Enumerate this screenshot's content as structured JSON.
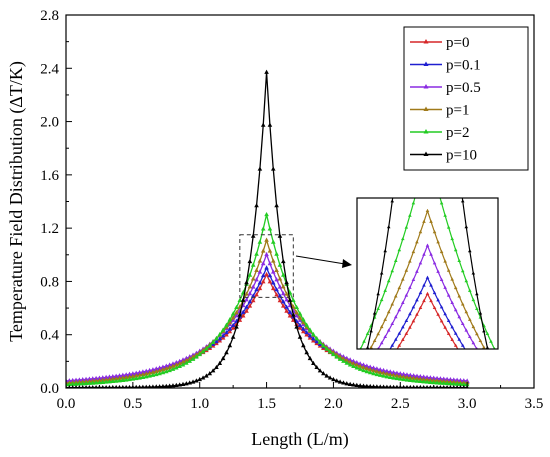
{
  "chart_data": {
    "type": "line",
    "xlabel": "Length (L/m)",
    "ylabel": "Temperature Field Distribution (ΔT/K)",
    "xlim": [
      0.0,
      3.5
    ],
    "ylim": [
      0.0,
      2.8
    ],
    "xticks": [
      "0.0",
      "0.5",
      "1.0",
      "1.5",
      "2.0",
      "2.5",
      "3.0",
      "3.5"
    ],
    "yticks": [
      "0.0",
      "0.4",
      "0.8",
      "1.2",
      "1.6",
      "2.0",
      "2.4",
      "2.8"
    ],
    "grid": false,
    "legend_position": "top-right",
    "peak_x": 1.5,
    "x_range": [
      0.0,
      3.0
    ],
    "series": [
      {
        "name": "p=0",
        "color": "#d62728",
        "peak": 0.78,
        "edge": 0.06,
        "tail": 0.035
      },
      {
        "name": "p=0.1",
        "color": "#1f1fd0",
        "peak": 0.83,
        "edge": 0.06,
        "tail": 0.04
      },
      {
        "name": "p=0.5",
        "color": "#8a2be2",
        "peak": 0.93,
        "edge": 0.06,
        "tail": 0.045
      },
      {
        "name": "p=1",
        "color": "#a07a1a",
        "peak": 1.05,
        "edge": 0.05,
        "tail": 0.03
      },
      {
        "name": "p=2",
        "color": "#22cc22",
        "peak": 1.26,
        "edge": 0.035,
        "tail": 0.02
      },
      {
        "name": "p=10",
        "color": "#000000",
        "peak": 2.37,
        "edge": 0.0,
        "tail": 0.003
      }
    ],
    "inset": {
      "type": "zoom",
      "source_xlim": [
        1.3,
        1.7
      ],
      "source_ylim": [
        0.68,
        1.15
      ]
    }
  }
}
